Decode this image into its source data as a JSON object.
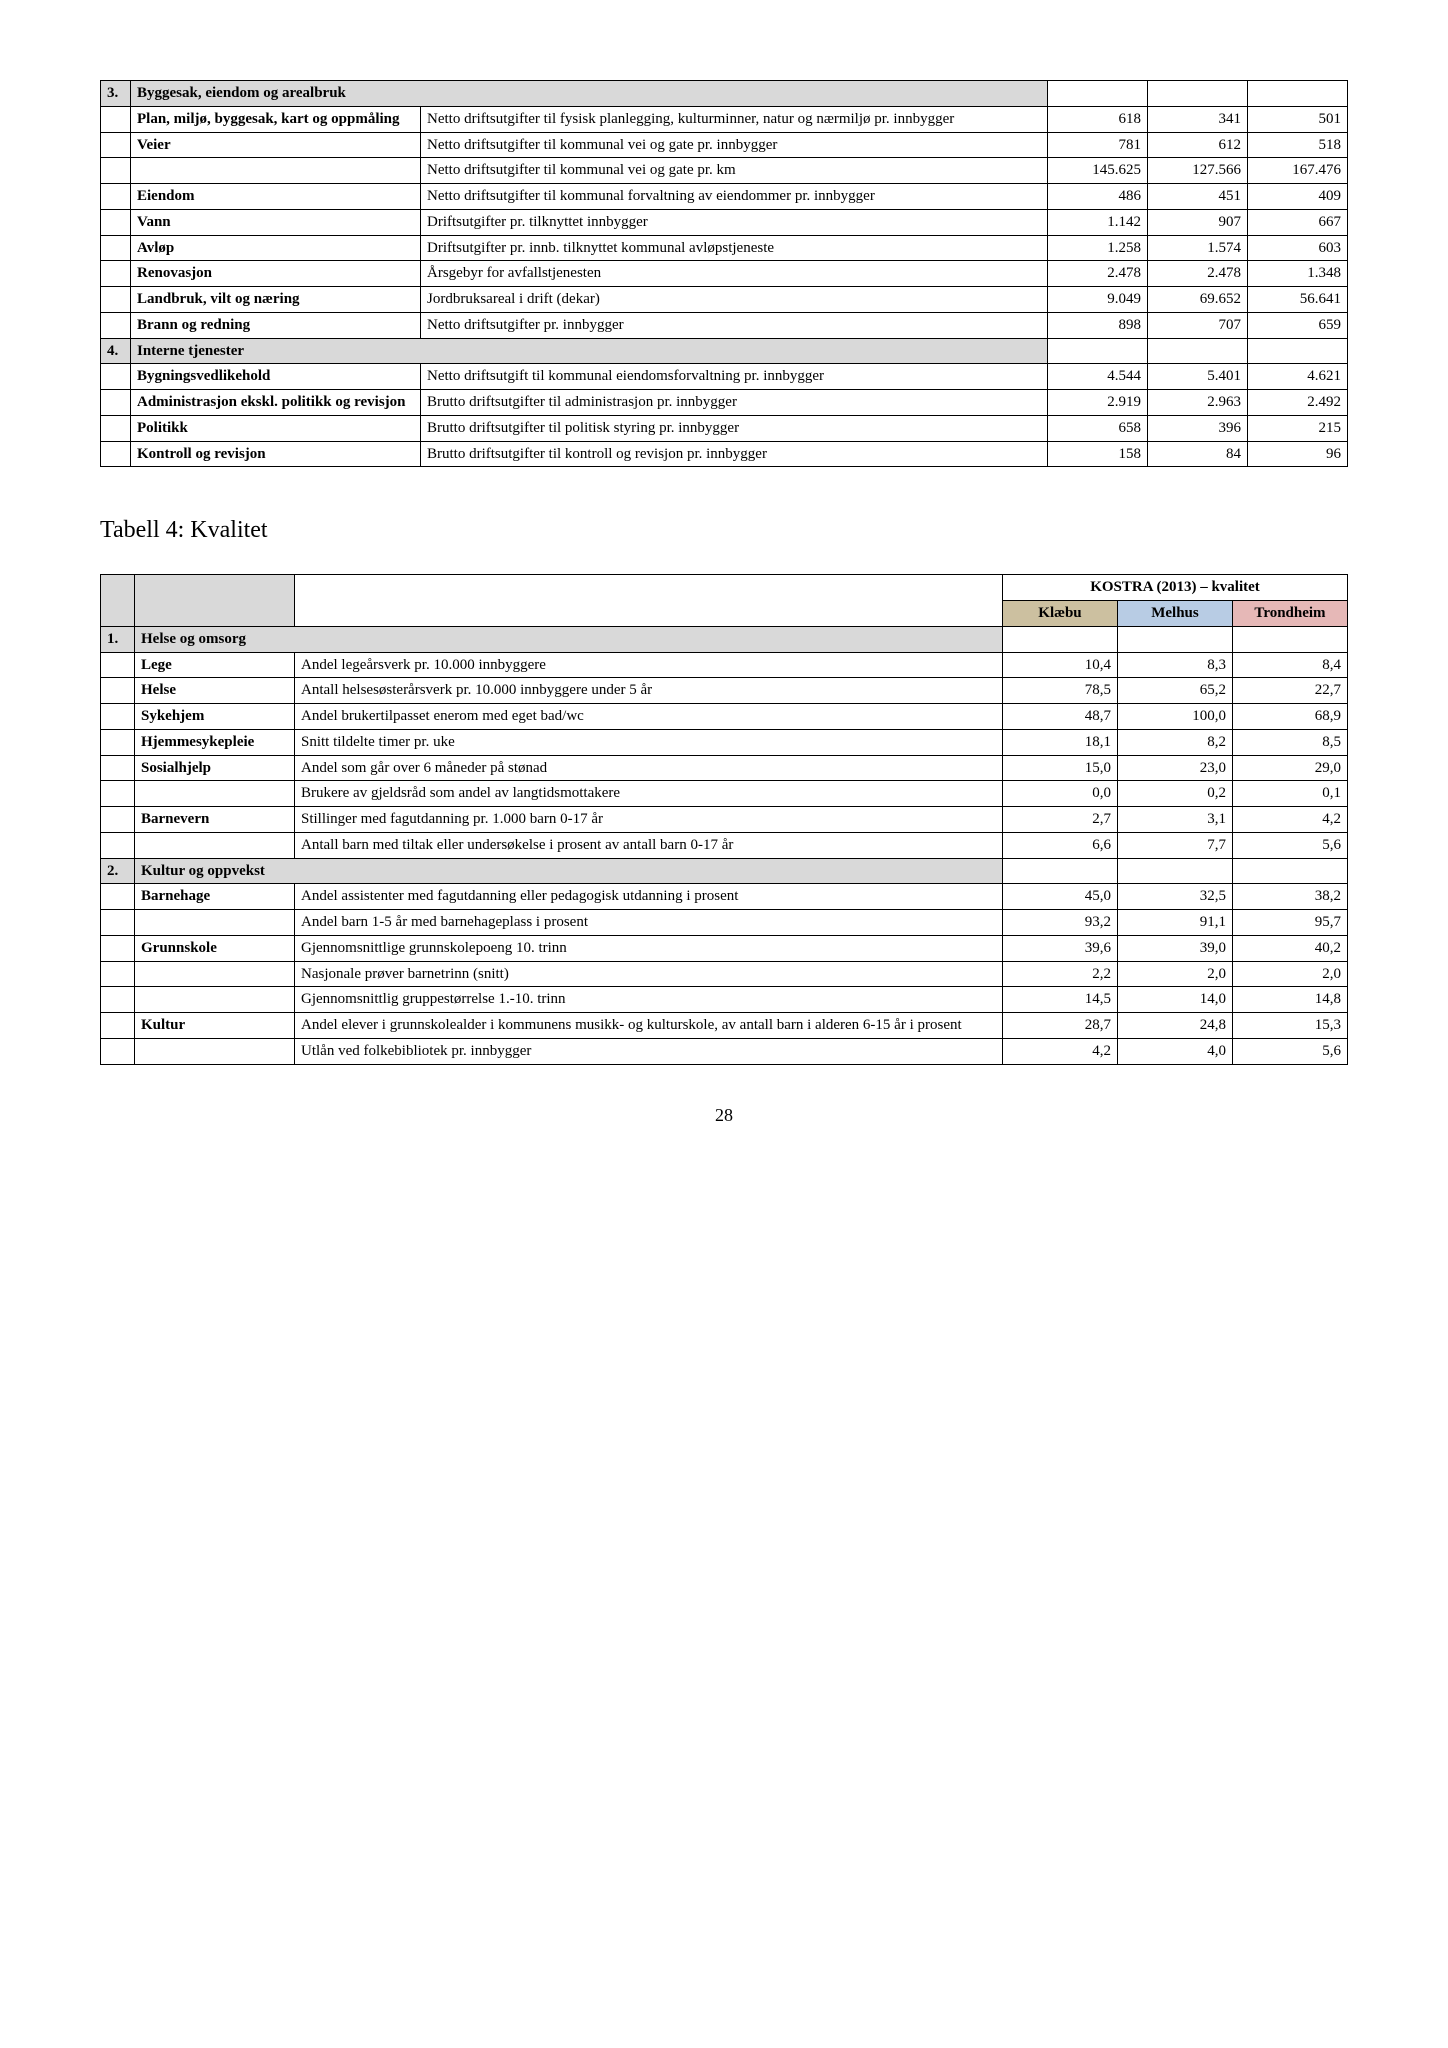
{
  "table1": {
    "sections": [
      {
        "num": "3.",
        "title": "Byggesak, eiendom og arealbruk",
        "rows": [
          {
            "label": "Plan, miljø, byggesak, kart og oppmåling",
            "desc": "Netto driftsutgifter til fysisk planlegging, kulturminner, natur og nærmiljø pr. innbygger",
            "v1": "618",
            "v2": "341",
            "v3": "501"
          },
          {
            "label": "Veier",
            "desc": "Netto driftsutgifter til kommunal vei og gate pr. innbygger",
            "v1": "781",
            "v2": "612",
            "v3": "518"
          },
          {
            "label": "",
            "desc": "Netto driftsutgifter til kommunal vei og gate pr. km",
            "v1": "145.625",
            "v2": "127.566",
            "v3": "167.476"
          },
          {
            "label": "Eiendom",
            "desc": "Netto driftsutgifter til kommunal forvaltning av eiendommer pr. innbygger",
            "v1": "486",
            "v2": "451",
            "v3": "409"
          },
          {
            "label": "Vann",
            "desc": "Driftsutgifter pr. tilknyttet innbygger",
            "v1": "1.142",
            "v2": "907",
            "v3": "667"
          },
          {
            "label": "Avløp",
            "desc": "Driftsutgifter pr. innb. tilknyttet kommunal avløpstjeneste",
            "v1": "1.258",
            "v2": "1.574",
            "v3": "603"
          },
          {
            "label": "Renovasjon",
            "desc": "Årsgebyr for avfallstjenesten",
            "v1": "2.478",
            "v2": "2.478",
            "v3": "1.348"
          },
          {
            "label": "Landbruk, vilt og næring",
            "desc": "Jordbruksareal i drift (dekar)",
            "v1": "9.049",
            "v2": "69.652",
            "v3": "56.641"
          },
          {
            "label": "Brann og redning",
            "desc": "Netto driftsutgifter pr. innbygger",
            "v1": "898",
            "v2": "707",
            "v3": "659"
          }
        ]
      },
      {
        "num": "4.",
        "title": "Interne tjenester",
        "rows": [
          {
            "label": "Bygningsvedlikehold",
            "desc": "Netto driftsutgift til kommunal eiendomsforvaltning pr. innbygger",
            "v1": "4.544",
            "v2": "5.401",
            "v3": "4.621"
          },
          {
            "label": "Administrasjon ekskl. politikk og revisjon",
            "desc": "Brutto driftsutgifter til administrasjon pr. innbygger",
            "v1": "2.919",
            "v2": "2.963",
            "v3": "2.492"
          },
          {
            "label": "Politikk",
            "desc": "Brutto driftsutgifter til politisk styring pr. innbygger",
            "v1": "658",
            "v2": "396",
            "v3": "215"
          },
          {
            "label": "Kontroll og revisjon",
            "desc": "Brutto driftsutgifter til kontroll og revisjon pr. innbygger",
            "v1": "158",
            "v2": "84",
            "v3": "96"
          }
        ]
      }
    ]
  },
  "heading2": "Tabell 4: Kvalitet",
  "table2": {
    "group_header": "KOSTRA (2013) – kvalitet",
    "col_headers": [
      "Klæbu",
      "Melhus",
      "Trondheim"
    ],
    "sections": [
      {
        "num": "1.",
        "title": "Helse og omsorg",
        "rows": [
          {
            "label": "Lege",
            "desc": "Andel legeårsverk pr. 10.000 innbyggere",
            "v1": "10,4",
            "v2": "8,3",
            "v3": "8,4"
          },
          {
            "label": "Helse",
            "desc": "Antall helsesøsterårsverk pr. 10.000 innbyggere under 5 år",
            "v1": "78,5",
            "v2": "65,2",
            "v3": "22,7"
          },
          {
            "label": "Sykehjem",
            "desc": "Andel brukertilpasset enerom med eget bad/wc",
            "v1": "48,7",
            "v2": "100,0",
            "v3": "68,9"
          },
          {
            "label": "Hjemmesykepleie",
            "desc": "Snitt tildelte timer pr. uke",
            "v1": "18,1",
            "v2": "8,2",
            "v3": "8,5"
          },
          {
            "label": "Sosialhjelp",
            "desc": "Andel som går over 6 måneder på stønad",
            "v1": "15,0",
            "v2": "23,0",
            "v3": "29,0"
          },
          {
            "label": "",
            "desc": "Brukere av gjeldsråd som andel av langtidsmottakere",
            "v1": "0,0",
            "v2": "0,2",
            "v3": "0,1"
          },
          {
            "label": "Barnevern",
            "desc": "Stillinger med fagutdanning pr. 1.000 barn 0-17 år",
            "v1": "2,7",
            "v2": "3,1",
            "v3": "4,2"
          },
          {
            "label": "",
            "desc": "Antall barn med tiltak eller undersøkelse i prosent av antall barn 0-17 år",
            "v1": "6,6",
            "v2": "7,7",
            "v3": "5,6"
          }
        ]
      },
      {
        "num": "2.",
        "title": "Kultur og oppvekst",
        "rows": [
          {
            "label": "Barnehage",
            "desc": "Andel assistenter med fagutdanning eller pedagogisk utdanning i prosent",
            "v1": "45,0",
            "v2": "32,5",
            "v3": "38,2"
          },
          {
            "label": "",
            "desc": "Andel barn 1-5 år med barnehageplass i prosent",
            "v1": "93,2",
            "v2": "91,1",
            "v3": "95,7"
          },
          {
            "label": "Grunnskole",
            "desc": "Gjennomsnittlige grunnskolepoeng 10. trinn",
            "v1": "39,6",
            "v2": "39,0",
            "v3": "40,2"
          },
          {
            "label": "",
            "desc": "Nasjonale prøver barnetrinn (snitt)",
            "v1": "2,2",
            "v2": "2,0",
            "v3": "2,0"
          },
          {
            "label": "",
            "desc": "Gjennomsnittlig gruppestørrelse 1.-10. trinn",
            "v1": "14,5",
            "v2": "14,0",
            "v3": "14,8"
          },
          {
            "label": "Kultur",
            "desc": "Andel elever i grunnskolealder i kommunens musikk- og kulturskole, av antall barn i alderen 6-15 år i prosent",
            "v1": "28,7",
            "v2": "24,8",
            "v3": "15,3"
          },
          {
            "label": "",
            "desc": "Utlån ved folkebibliotek pr. innbygger",
            "v1": "4,2",
            "v2": "4,0",
            "v3": "5,6"
          }
        ]
      }
    ]
  },
  "page_number": "28"
}
